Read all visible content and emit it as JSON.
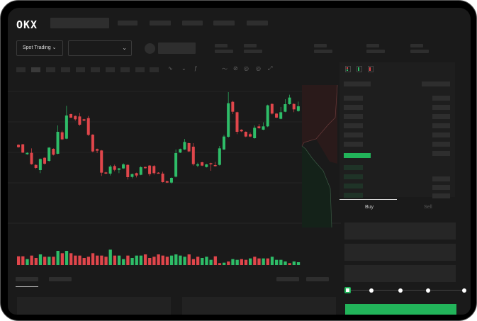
{
  "header": {
    "logo": "OKX"
  },
  "toolbar": {
    "market_type": "Spot Trading",
    "market_chevron": "⌄",
    "pair_chevron": "⌄"
  },
  "trade": {
    "tabs": [
      {
        "label": "Buy",
        "active": true
      },
      {
        "label": "Sell",
        "active": false
      }
    ],
    "slider_value_percent": 0
  },
  "colors": {
    "up": "#2ebd68",
    "down": "#e0464b",
    "accent": "#22b45a",
    "background": "#1a1a1a"
  },
  "chart_data": {
    "type": "candlestick",
    "candles": [
      [
        210,
        200,
        212,
        198
      ],
      [
        212,
        177,
        214,
        175
      ],
      [
        170,
        176,
        178,
        168
      ],
      [
        176,
        128,
        195,
        126
      ],
      [
        125,
        112,
        127,
        108
      ],
      [
        103,
        150,
        152,
        90
      ],
      [
        155,
        130,
        157,
        126
      ],
      [
        142,
        198,
        200,
        138
      ],
      [
        193,
        168,
        195,
        165
      ],
      [
        172,
        265,
        292,
        170
      ],
      [
        263,
        233,
        270,
        231
      ],
      [
        236,
        334,
        375,
        234
      ],
      [
        340,
        325,
        342,
        323
      ],
      [
        332,
        318,
        334,
        312
      ],
      [
        330,
        295,
        345,
        290
      ],
      [
        318,
        312,
        320,
        310
      ],
      [
        323,
        252,
        332,
        248
      ],
      [
        253,
        182,
        255,
        178
      ],
      [
        192,
        185,
        194,
        175
      ],
      [
        186,
        92,
        188,
        78
      ],
      [
        93,
        88,
        96,
        86
      ],
      [
        88,
        118,
        124,
        80
      ],
      [
        120,
        104,
        126,
        98
      ],
      [
        104,
        110,
        112,
        90
      ],
      [
        110,
        127,
        132,
        108
      ],
      [
        125,
        73,
        127,
        63
      ],
      [
        74,
        86,
        88,
        68
      ],
      [
        90,
        80,
        92,
        72
      ],
      [
        83,
        115,
        120,
        81
      ],
      [
        116,
        111,
        118,
        109
      ],
      [
        122,
        86,
        124,
        78
      ],
      [
        120,
        90,
        124,
        84
      ],
      [
        92,
        90,
        94,
        88
      ],
      [
        88,
        52,
        96,
        50
      ],
      [
        56,
        50,
        58,
        48
      ],
      [
        50,
        70,
        72,
        46
      ],
      [
        75,
        175,
        190,
        72
      ],
      [
        177,
        192,
        194,
        175
      ],
      [
        190,
        222,
        235,
        188
      ],
      [
        217,
        182,
        219,
        180
      ],
      [
        202,
        128,
        217,
        122
      ],
      [
        122,
        127,
        134,
        115
      ],
      [
        136,
        122,
        138,
        120
      ],
      [
        116,
        127,
        129,
        114
      ],
      [
        132,
        130,
        134,
        100
      ],
      [
        124,
        120,
        138,
        118
      ],
      [
        125,
        195,
        205,
        122
      ],
      [
        190,
        245,
        252,
        188
      ],
      [
        244,
        386,
        433,
        240
      ],
      [
        392,
        350,
        396,
        340
      ],
      [
        348,
        265,
        350,
        255
      ],
      [
        274,
        267,
        276,
        264
      ],
      [
        265,
        245,
        267,
        242
      ],
      [
        255,
        245,
        262,
        243
      ],
      [
        238,
        282,
        292,
        236
      ],
      [
        288,
        280,
        298,
        278
      ],
      [
        274,
        288,
        305,
        272
      ],
      [
        288,
        377,
        380,
        285
      ],
      [
        383,
        342,
        385,
        338
      ],
      [
        342,
        325,
        344,
        323
      ],
      [
        320,
        348,
        370,
        318
      ],
      [
        350,
        382,
        403,
        348
      ],
      [
        382,
        410,
        422,
        380
      ],
      [
        383,
        360,
        385,
        348
      ],
      [
        353,
        373,
        393,
        350
      ]
    ],
    "volume": [
      [
        37,
        "down"
      ],
      [
        37,
        "down"
      ],
      [
        25,
        "up"
      ],
      [
        40,
        "down"
      ],
      [
        30,
        "down"
      ],
      [
        45,
        "up"
      ],
      [
        35,
        "down"
      ],
      [
        35,
        "up"
      ],
      [
        35,
        "down"
      ],
      [
        60,
        "up"
      ],
      [
        50,
        "down"
      ],
      [
        60,
        "up"
      ],
      [
        50,
        "down"
      ],
      [
        40,
        "down"
      ],
      [
        40,
        "down"
      ],
      [
        30,
        "down"
      ],
      [
        35,
        "down"
      ],
      [
        50,
        "down"
      ],
      [
        40,
        "down"
      ],
      [
        40,
        "down"
      ],
      [
        35,
        "down"
      ],
      [
        65,
        "up"
      ],
      [
        40,
        "down"
      ],
      [
        40,
        "up"
      ],
      [
        25,
        "up"
      ],
      [
        40,
        "down"
      ],
      [
        30,
        "up"
      ],
      [
        40,
        "up"
      ],
      [
        40,
        "up"
      ],
      [
        45,
        "down"
      ],
      [
        30,
        "down"
      ],
      [
        35,
        "down"
      ],
      [
        45,
        "down"
      ],
      [
        40,
        "down"
      ],
      [
        35,
        "down"
      ],
      [
        40,
        "up"
      ],
      [
        45,
        "up"
      ],
      [
        40,
        "up"
      ],
      [
        35,
        "up"
      ],
      [
        45,
        "down"
      ],
      [
        25,
        "down"
      ],
      [
        35,
        "down"
      ],
      [
        30,
        "up"
      ],
      [
        35,
        "up"
      ],
      [
        22,
        "up"
      ],
      [
        37,
        "down"
      ],
      [
        8,
        "down"
      ],
      [
        10,
        "up"
      ],
      [
        15,
        "down"
      ],
      [
        25,
        "up"
      ],
      [
        22,
        "up"
      ],
      [
        25,
        "down"
      ],
      [
        22,
        "down"
      ],
      [
        28,
        "up"
      ],
      [
        35,
        "down"
      ],
      [
        28,
        "down"
      ],
      [
        28,
        "up"
      ],
      [
        28,
        "down"
      ],
      [
        35,
        "up"
      ],
      [
        22,
        "up"
      ],
      [
        22,
        "up"
      ],
      [
        15,
        "up"
      ],
      [
        8,
        "down"
      ],
      [
        15,
        "up"
      ],
      [
        12,
        "up"
      ]
    ],
    "grid": true
  }
}
